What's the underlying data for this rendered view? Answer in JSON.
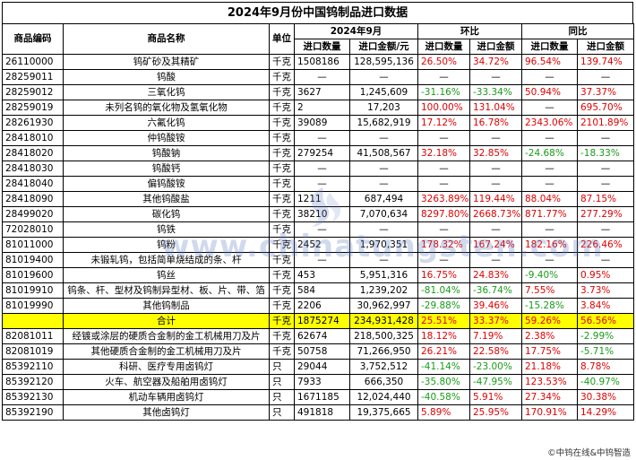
{
  "title": "2024年9月份中国钨制品进口数据",
  "headers": {
    "code": "商品编码",
    "name": "商品名称",
    "unit": "单位",
    "period": "2024年9月",
    "mom": "环比",
    "yoy": "同比",
    "qty": "进口数量",
    "amount": "进口金额/元",
    "qty_short": "进口数量",
    "amount_short": "进口金额"
  },
  "rows": [
    {
      "code": "26110000",
      "name": "钨矿砂及其精矿",
      "unit": "千克",
      "qty": "1508186",
      "amount": "128,595,136",
      "mom_qty": "26.50%",
      "mom_amt": "34.72%",
      "yoy_qty": "96.54%",
      "yoy_amt": "139.74%"
    },
    {
      "code": "28259011",
      "name": "钨酸",
      "unit": "千克",
      "qty": "—",
      "amount": "—",
      "mom_qty": "—",
      "mom_amt": "—",
      "yoy_qty": "—",
      "yoy_amt": "—"
    },
    {
      "code": "28259012",
      "name": "三氧化钨",
      "unit": "千克",
      "qty": "3627",
      "amount": "1,245,609",
      "mom_qty": "-31.16%",
      "mom_amt": "-33.34%",
      "yoy_qty": "50.94%",
      "yoy_amt": "37.37%"
    },
    {
      "code": "28259019",
      "name": "未列名钨的氧化物及氢氧化物",
      "unit": "千克",
      "qty": "2",
      "amount": "17,203",
      "mom_qty": "100.00%",
      "mom_amt": "131.04%",
      "yoy_qty": "—",
      "yoy_amt": "695.70%"
    },
    {
      "code": "28261930",
      "name": "六氟化钨",
      "unit": "千克",
      "qty": "39089",
      "amount": "15,682,919",
      "mom_qty": "17.12%",
      "mom_amt": "16.78%",
      "yoy_qty": "2343.06%",
      "yoy_amt": "2101.89%"
    },
    {
      "code": "28418010",
      "name": "仲钨酸铵",
      "unit": "千克",
      "qty": "—",
      "amount": "—",
      "mom_qty": "—",
      "mom_amt": "—",
      "yoy_qty": "—",
      "yoy_amt": "—"
    },
    {
      "code": "28418020",
      "name": "钨酸钠",
      "unit": "千克",
      "qty": "279254",
      "amount": "41,508,567",
      "mom_qty": "32.18%",
      "mom_amt": "32.85%",
      "yoy_qty": "-24.68%",
      "yoy_amt": "-18.33%"
    },
    {
      "code": "28418030",
      "name": "钨酸钙",
      "unit": "千克",
      "qty": "—",
      "amount": "—",
      "mom_qty": "—",
      "mom_amt": "—",
      "yoy_qty": "—",
      "yoy_amt": "—"
    },
    {
      "code": "28418040",
      "name": "偏钨酸铵",
      "unit": "千克",
      "qty": "—",
      "amount": "—",
      "mom_qty": "—",
      "mom_amt": "—",
      "yoy_qty": "—",
      "yoy_amt": "—"
    },
    {
      "code": "28418090",
      "name": "其他钨酸盐",
      "unit": "千克",
      "qty": "1211",
      "amount": "687,494",
      "mom_qty": "3263.89%",
      "mom_amt": "119.44%",
      "yoy_qty": "88.04%",
      "yoy_amt": "87.15%"
    },
    {
      "code": "28499020",
      "name": "碳化钨",
      "unit": "千克",
      "qty": "38210",
      "amount": "7,070,634",
      "mom_qty": "8297.80%",
      "mom_amt": "2668.73%",
      "yoy_qty": "871.77%",
      "yoy_amt": "277.29%"
    },
    {
      "code": "72028010",
      "name": "钨铁",
      "unit": "千克",
      "qty": "—",
      "amount": "—",
      "mom_qty": "—",
      "mom_amt": "—",
      "yoy_qty": "—",
      "yoy_amt": "—"
    },
    {
      "code": "81011000",
      "name": "钨粉",
      "unit": "千克",
      "qty": "2452",
      "amount": "1,970,351",
      "mom_qty": "178.32%",
      "mom_amt": "167.24%",
      "yoy_qty": "182.16%",
      "yoy_amt": "226.46%"
    },
    {
      "code": "81019400",
      "name": "未锻轧钨，包括简单烧结成的条、杆",
      "unit": "千克",
      "qty": "—",
      "amount": "—",
      "mom_qty": "—",
      "mom_amt": "—",
      "yoy_qty": "—",
      "yoy_amt": "—"
    },
    {
      "code": "81019600",
      "name": "钨丝",
      "unit": "千克",
      "qty": "453",
      "amount": "5,951,316",
      "mom_qty": "16.75%",
      "mom_amt": "24.83%",
      "yoy_qty": "-9.40%",
      "yoy_amt": "0.95%"
    },
    {
      "code": "81019910",
      "name": "钨条、杆、型材及钨制异型材、板、片、带、箔",
      "unit": "千克",
      "qty": "584",
      "amount": "1,239,202",
      "mom_qty": "-81.04%",
      "mom_amt": "-36.74%",
      "yoy_qty": "7.55%",
      "yoy_amt": "3.73%"
    },
    {
      "code": "81019990",
      "name": "其他钨制品",
      "unit": "千克",
      "qty": "2206",
      "amount": "30,962,997",
      "mom_qty": "-29.88%",
      "mom_amt": "39.46%",
      "yoy_qty": "-15.28%",
      "yoy_amt": "3.84%"
    },
    {
      "code": "",
      "name": "合计",
      "unit": "千克",
      "qty": "1875274",
      "amount": "234,931,428",
      "mom_qty": "25.51%",
      "mom_amt": "33.37%",
      "yoy_qty": "59.26%",
      "yoy_amt": "56.56%",
      "total": true
    },
    {
      "code": "82081011",
      "name": "经镀或涂层的硬质合金制的金工机械用刀及片",
      "unit": "千克",
      "qty": "62674",
      "amount": "218,500,325",
      "mom_qty": "18.12%",
      "mom_amt": "7.19%",
      "yoy_qty": "2.38%",
      "yoy_amt": "-2.99%"
    },
    {
      "code": "82081019",
      "name": "其他硬质合金制的金工机械用刀及片",
      "unit": "千克",
      "qty": "50758",
      "amount": "71,266,950",
      "mom_qty": "26.21%",
      "mom_amt": "22.58%",
      "yoy_qty": "17.75%",
      "yoy_amt": "-5.71%"
    },
    {
      "code": "85392110",
      "name": "科研、医疗专用卤钨灯",
      "unit": "只",
      "qty": "29044",
      "amount": "3,752,512",
      "mom_qty": "-41.14%",
      "mom_amt": "-23.00%",
      "yoy_qty": "21.18%",
      "yoy_amt": "8.78%"
    },
    {
      "code": "85392120",
      "name": "火车、航空器及船舶用卤钨灯",
      "unit": "只",
      "qty": "7933",
      "amount": "666,350",
      "mom_qty": "-35.80%",
      "mom_amt": "-47.95%",
      "yoy_qty": "123.53%",
      "yoy_amt": "-40.97%"
    },
    {
      "code": "85392130",
      "name": "机动车辆用卤钨灯",
      "unit": "只",
      "qty": "1671185",
      "amount": "12,024,440",
      "mom_qty": "-40.58%",
      "mom_amt": "5.91%",
      "yoy_qty": "27.34%",
      "yoy_amt": "30.38%"
    },
    {
      "code": "85392190",
      "name": "其他卤钨灯",
      "unit": "只",
      "qty": "491818",
      "amount": "19,375,665",
      "mom_qty": "5.89%",
      "mom_amt": "25.95%",
      "yoy_qty": "170.91%",
      "yoy_amt": "14.29%"
    }
  ],
  "watermark": "www.chinatungsten.com",
  "footer": "©中钨在线&中钨智造",
  "colors": {
    "positive": "#e00000",
    "negative": "#1a9b1a",
    "total_bg": "#ffff00"
  }
}
